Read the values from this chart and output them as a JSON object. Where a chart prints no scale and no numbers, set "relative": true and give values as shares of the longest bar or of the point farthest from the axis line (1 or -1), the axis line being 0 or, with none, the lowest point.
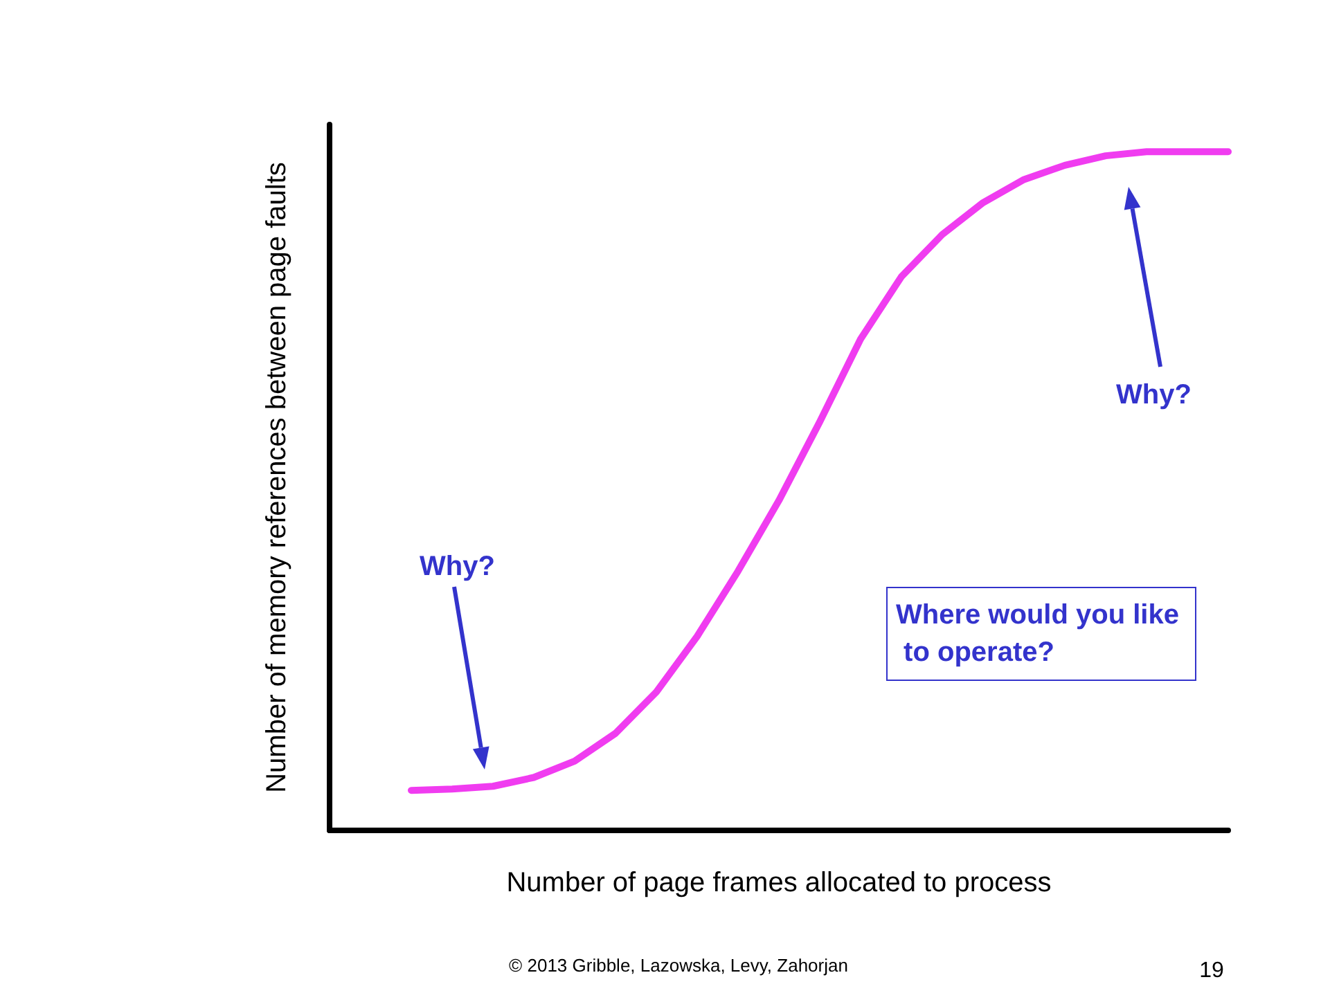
{
  "chart_data": {
    "type": "line",
    "relative": true,
    "xlabel": "Number of page frames allocated to process",
    "ylabel": "Number of memory references between page faults",
    "categories": [
      null,
      null,
      null,
      null,
      null,
      null,
      null,
      null,
      null,
      null,
      null,
      null,
      null,
      null,
      null,
      null,
      null,
      null,
      null,
      null,
      null,
      null,
      null
    ],
    "series": [
      {
        "color": "#f03cf0",
        "values": [
          null,
          null,
          0.059,
          0.061,
          0.065,
          0.078,
          0.102,
          0.143,
          0.204,
          0.286,
          0.382,
          0.486,
          0.602,
          0.724,
          0.816,
          0.878,
          0.925,
          0.959,
          0.98,
          0.994,
          1,
          1,
          1
        ]
      }
    ],
    "marker": "none",
    "line_style": "solid",
    "grid": false,
    "annotations": [
      "Why?",
      "Why?",
      "Where would you like to operate?",
      "© 2013 Gribble, Lazowska, Levy, Zahorjan",
      "19"
    ]
  }
}
